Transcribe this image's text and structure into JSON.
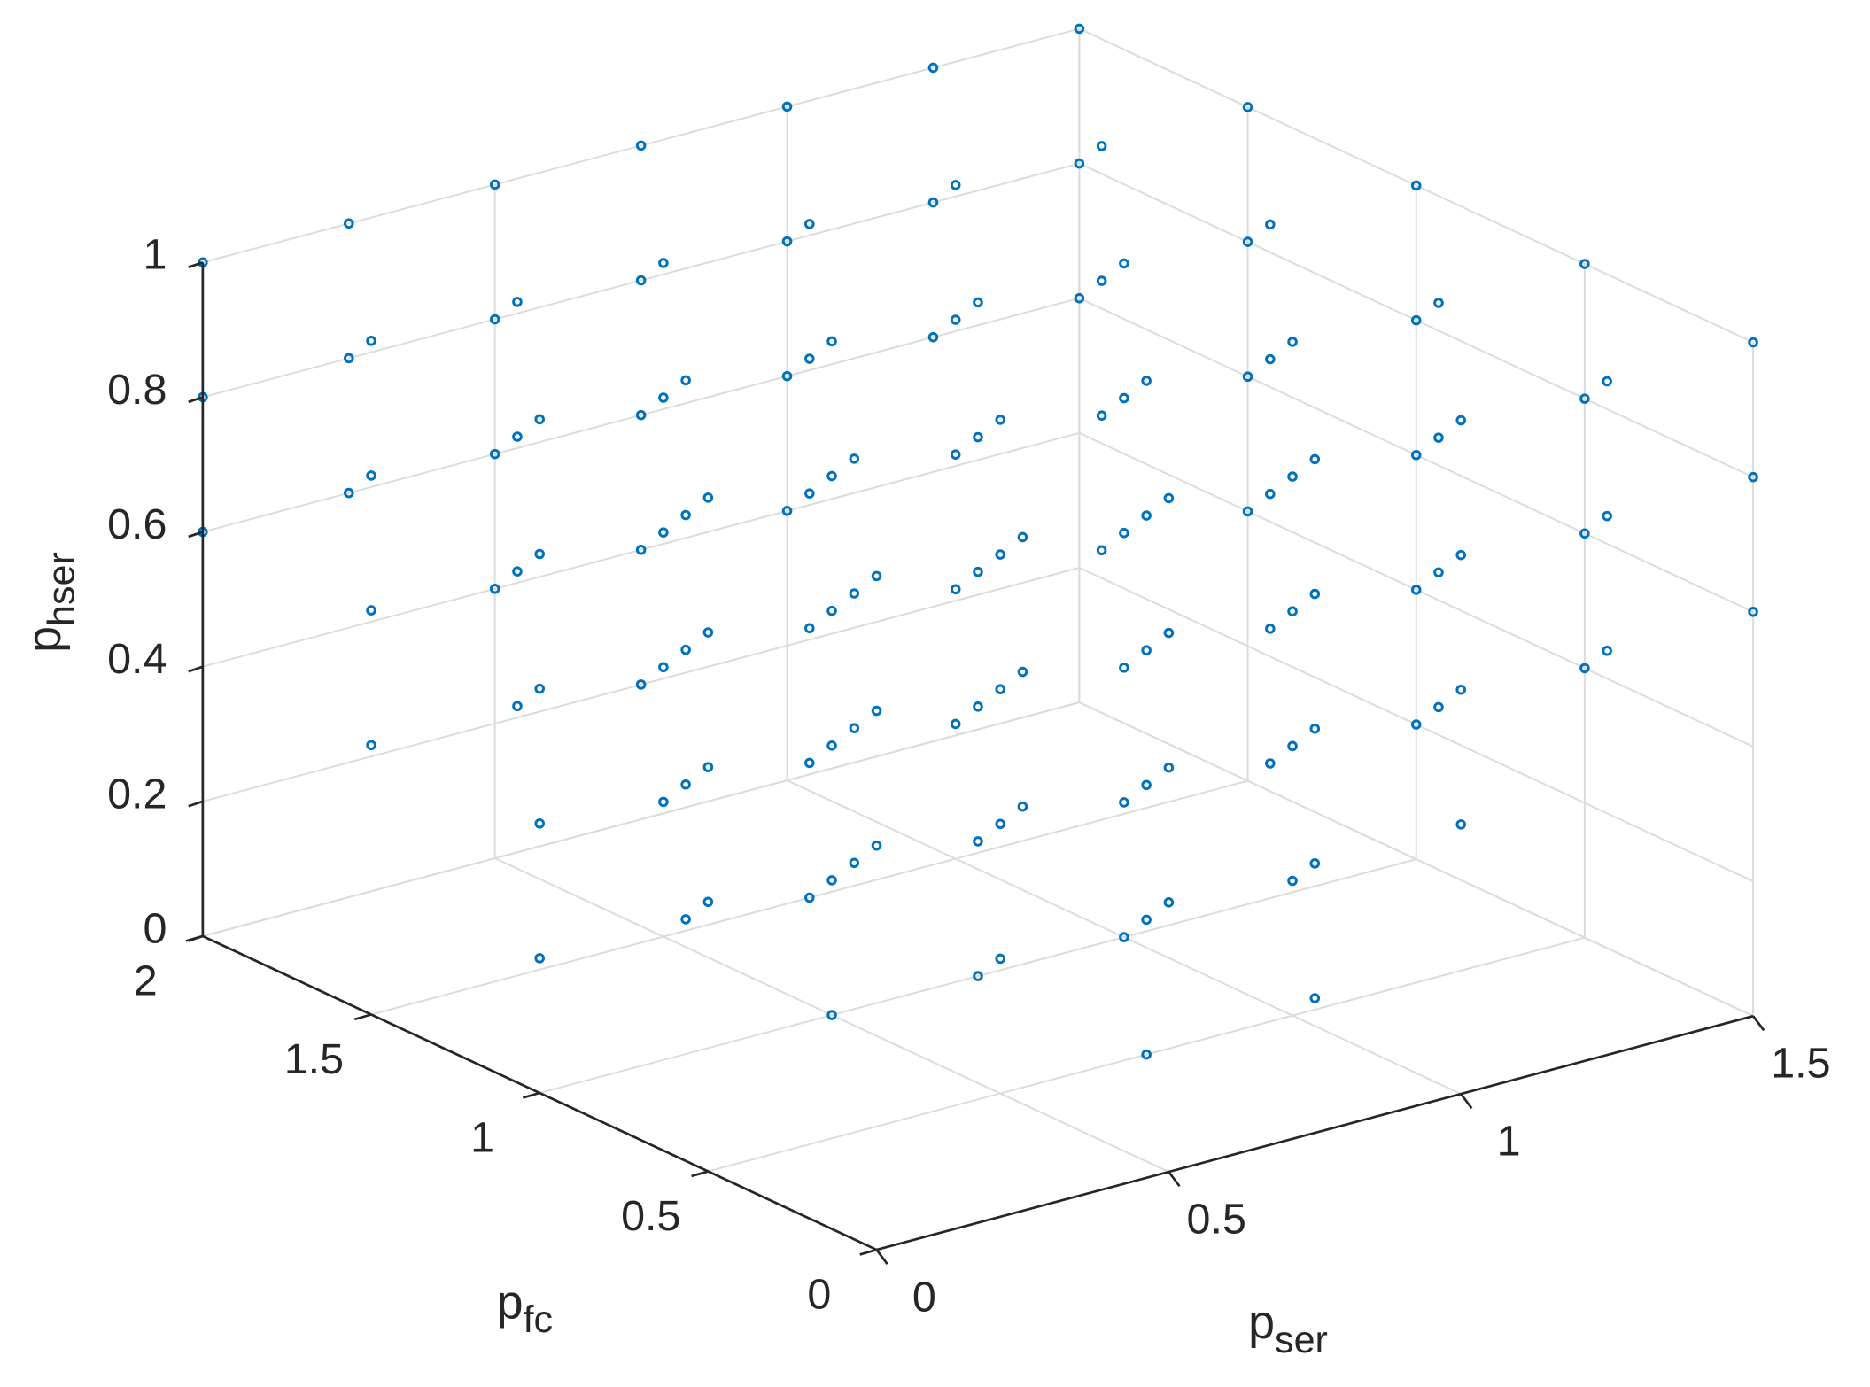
{
  "chart_data": {
    "type": "scatter3d",
    "xlabel": {
      "base": "p",
      "sub": "ser"
    },
    "ylabel": {
      "base": "p",
      "sub": "fc"
    },
    "zlabel": {
      "base": "p",
      "sub": "hser"
    },
    "xlim": [
      0,
      1.5
    ],
    "xticks": [
      0,
      0.5,
      1,
      1.5
    ],
    "ylim": [
      0,
      2
    ],
    "yticks": [
      0,
      0.5,
      1,
      1.5,
      2
    ],
    "zlim": [
      0,
      1
    ],
    "zticks": [
      0,
      0.2,
      0.4,
      0.6,
      0.8,
      1
    ],
    "grid": true,
    "color": "#0072bd",
    "points": [
      [
        0,
        0,
        0.6
      ],
      [
        0,
        0,
        0.8
      ],
      [
        0,
        0,
        1
      ],
      [
        0.25,
        0,
        0.6
      ],
      [
        0.25,
        0,
        0.8
      ],
      [
        0.25,
        0,
        1
      ],
      [
        0.5,
        0,
        0.4
      ],
      [
        0.5,
        0,
        0.6
      ],
      [
        0.5,
        0,
        0.8
      ],
      [
        0.5,
        0,
        1
      ],
      [
        0.75,
        0,
        0.2
      ],
      [
        0.75,
        0,
        0.4
      ],
      [
        0.75,
        0,
        0.6
      ],
      [
        0.75,
        0,
        0.8
      ],
      [
        0.75,
        0,
        1
      ],
      [
        1,
        0,
        0.4
      ],
      [
        1,
        0,
        0.6
      ],
      [
        1,
        0,
        0.8
      ],
      [
        1,
        0,
        1
      ],
      [
        1.25,
        0,
        0.6
      ],
      [
        1.25,
        0,
        0.8
      ],
      [
        1.25,
        0,
        1
      ],
      [
        1.5,
        0,
        0.6
      ],
      [
        1.5,
        0,
        0.8
      ],
      [
        1.5,
        0,
        1
      ],
      [
        0,
        0.5,
        0.4
      ],
      [
        0,
        0.5,
        0.6
      ],
      [
        0,
        0.5,
        0.8
      ],
      [
        0,
        0.5,
        1
      ],
      [
        0.25,
        0.5,
        0.4
      ],
      [
        0.25,
        0.5,
        0.6
      ],
      [
        0.25,
        0.5,
        0.8
      ],
      [
        0.25,
        0.5,
        1
      ],
      [
        0.5,
        0.5,
        0.2
      ],
      [
        0.5,
        0.5,
        0.4
      ],
      [
        0.5,
        0.5,
        0.6
      ],
      [
        0.5,
        0.5,
        0.8
      ],
      [
        0.5,
        0.5,
        1
      ],
      [
        0.75,
        0.5,
        0
      ],
      [
        0.75,
        0.5,
        0.2
      ],
      [
        0.75,
        0.5,
        0.4
      ],
      [
        0.75,
        0.5,
        0.6
      ],
      [
        0.75,
        0.5,
        0.8
      ],
      [
        0.75,
        0.5,
        1
      ],
      [
        1,
        0.5,
        0.2
      ],
      [
        1,
        0.5,
        0.4
      ],
      [
        1,
        0.5,
        0.6
      ],
      [
        1,
        0.5,
        0.8
      ],
      [
        1,
        0.5,
        1
      ],
      [
        1.25,
        0.5,
        0.4
      ],
      [
        1.25,
        0.5,
        0.6
      ],
      [
        1.25,
        0.5,
        0.8
      ],
      [
        1.25,
        0.5,
        1
      ],
      [
        1.5,
        0.5,
        0.4
      ],
      [
        1.5,
        0.5,
        0.6
      ],
      [
        1.5,
        0.5,
        0.8
      ],
      [
        1.5,
        0.5,
        1
      ],
      [
        0,
        1,
        0.2
      ],
      [
        0,
        1,
        0.4
      ],
      [
        0,
        1,
        0.6
      ],
      [
        0,
        1,
        0.8
      ],
      [
        0,
        1,
        1
      ],
      [
        0.25,
        1,
        0.2
      ],
      [
        0.25,
        1,
        0.4
      ],
      [
        0.25,
        1,
        0.6
      ],
      [
        0.25,
        1,
        0.8
      ],
      [
        0.25,
        1,
        1
      ],
      [
        0.5,
        1,
        0
      ],
      [
        0.5,
        1,
        0.2
      ],
      [
        0.5,
        1,
        0.4
      ],
      [
        0.5,
        1,
        0.6
      ],
      [
        0.5,
        1,
        0.8
      ],
      [
        0.5,
        1,
        1
      ],
      [
        0.75,
        1,
        0
      ],
      [
        0.75,
        1,
        0.2
      ],
      [
        0.75,
        1,
        0.4
      ],
      [
        0.75,
        1,
        0.6
      ],
      [
        0.75,
        1,
        0.8
      ],
      [
        0.75,
        1,
        1
      ],
      [
        1,
        1,
        0
      ],
      [
        1,
        1,
        0.2
      ],
      [
        1,
        1,
        0.4
      ],
      [
        1,
        1,
        0.6
      ],
      [
        1,
        1,
        0.8
      ],
      [
        1,
        1,
        1
      ],
      [
        1.25,
        1,
        0.2
      ],
      [
        1.25,
        1,
        0.4
      ],
      [
        1.25,
        1,
        0.6
      ],
      [
        1.25,
        1,
        0.8
      ],
      [
        1.25,
        1,
        1
      ],
      [
        1.5,
        1,
        0.2
      ],
      [
        1.5,
        1,
        0.4
      ],
      [
        1.5,
        1,
        0.6
      ],
      [
        1.5,
        1,
        0.8
      ],
      [
        1.5,
        1,
        1
      ],
      [
        0,
        1.5,
        0.4
      ],
      [
        0,
        1.5,
        0.6
      ],
      [
        0,
        1.5,
        0.8
      ],
      [
        0,
        1.5,
        1
      ],
      [
        0.25,
        1.5,
        0.4
      ],
      [
        0.25,
        1.5,
        0.6
      ],
      [
        0.25,
        1.5,
        0.8
      ],
      [
        0.25,
        1.5,
        1
      ],
      [
        0.5,
        1.5,
        0.2
      ],
      [
        0.5,
        1.5,
        0.4
      ],
      [
        0.5,
        1.5,
        0.6
      ],
      [
        0.5,
        1.5,
        0.8
      ],
      [
        0.5,
        1.5,
        1
      ],
      [
        0.75,
        1.5,
        0
      ],
      [
        0.75,
        1.5,
        0.2
      ],
      [
        0.75,
        1.5,
        0.4
      ],
      [
        0.75,
        1.5,
        0.6
      ],
      [
        0.75,
        1.5,
        0.8
      ],
      [
        0.75,
        1.5,
        1
      ],
      [
        1,
        1.5,
        0.2
      ],
      [
        1,
        1.5,
        0.4
      ],
      [
        1,
        1.5,
        0.6
      ],
      [
        1,
        1.5,
        0.8
      ],
      [
        1,
        1.5,
        1
      ],
      [
        1.25,
        1.5,
        0.4
      ],
      [
        1.25,
        1.5,
        0.6
      ],
      [
        1.25,
        1.5,
        0.8
      ],
      [
        1.25,
        1.5,
        1
      ],
      [
        1.5,
        1.5,
        0.4
      ],
      [
        1.5,
        1.5,
        0.6
      ],
      [
        1.5,
        1.5,
        0.8
      ],
      [
        1.5,
        1.5,
        1
      ],
      [
        0,
        2,
        0.6
      ],
      [
        0,
        2,
        0.8
      ],
      [
        0,
        2,
        1
      ],
      [
        0.25,
        2,
        0.6
      ],
      [
        0.25,
        2,
        0.8
      ],
      [
        0.25,
        2,
        1
      ],
      [
        0.5,
        2,
        0.4
      ],
      [
        0.5,
        2,
        0.6
      ],
      [
        0.5,
        2,
        0.8
      ],
      [
        0.5,
        2,
        1
      ],
      [
        0.75,
        2,
        0.2
      ],
      [
        0.75,
        2,
        0.4
      ],
      [
        0.75,
        2,
        0.6
      ],
      [
        0.75,
        2,
        0.8
      ],
      [
        0.75,
        2,
        1
      ],
      [
        1,
        2,
        0.4
      ],
      [
        1,
        2,
        0.6
      ],
      [
        1,
        2,
        0.8
      ],
      [
        1,
        2,
        1
      ],
      [
        1.25,
        2,
        0.6
      ],
      [
        1.25,
        2,
        0.8
      ],
      [
        1.25,
        2,
        1
      ],
      [
        1.5,
        2,
        0.6
      ],
      [
        1.5,
        2,
        0.8
      ],
      [
        1.5,
        2,
        1
      ]
    ]
  }
}
